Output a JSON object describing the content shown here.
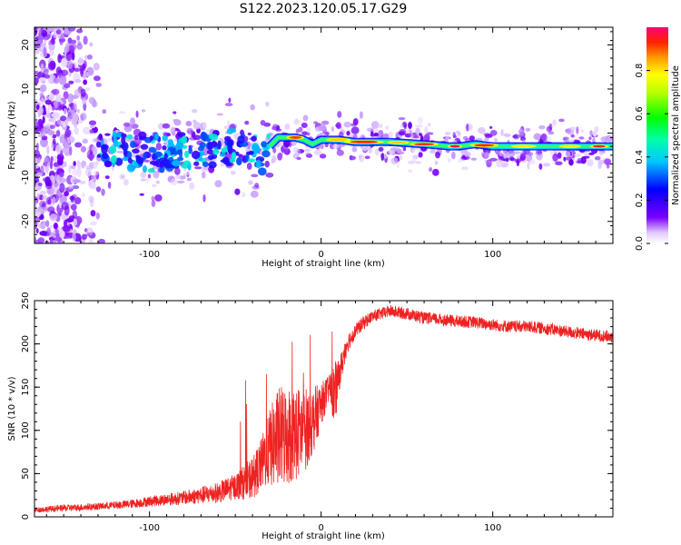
{
  "title": "S122.2023.120.05.17.G29",
  "chart_data": [
    {
      "type": "heatmap",
      "xlabel": "Height of straight line (km)",
      "ylabel": "Frequency (Hz)",
      "xlim": [
        -167,
        170
      ],
      "ylim": [
        -25,
        24
      ],
      "xticks": [
        -100,
        0,
        100
      ],
      "yticks": [
        -20,
        -10,
        0,
        10,
        20
      ],
      "colorbar": {
        "label": "Normalized spectral amplitude",
        "range": [
          0,
          1
        ],
        "ticks": [
          "0.0",
          "0.2",
          "0.4",
          "0.6",
          "0.8"
        ],
        "colormap": "rainbow (purple to red)"
      },
      "ridge": {
        "x": [
          -130,
          -110,
          -90,
          -70,
          -50,
          -35,
          -30,
          -25,
          -20,
          -15,
          -10,
          -5,
          0,
          10,
          20,
          40,
          60,
          75,
          80,
          90,
          100,
          120,
          140,
          160,
          170
        ],
        "frequency_hz": [
          -4,
          -4.5,
          -4.5,
          -3.5,
          -3,
          -5,
          -3,
          -1,
          -1,
          -1,
          -1.5,
          -2.5,
          -1.5,
          -1.5,
          -2,
          -2,
          -2.5,
          -3,
          -3,
          -2.5,
          -3,
          -3,
          -3,
          -3,
          -3
        ]
      },
      "noisy_region_x": [
        -167,
        -130
      ]
    },
    {
      "type": "line",
      "color": "#ee2222",
      "xlabel": "Height of straight line (km)",
      "ylabel": "SNR (10 * v/v)",
      "xlim": [
        -167,
        170
      ],
      "ylim": [
        0,
        250
      ],
      "xticks": [
        -100,
        0,
        100
      ],
      "yticks": [
        0,
        50,
        100,
        150,
        200,
        250
      ],
      "series": [
        {
          "x": [
            -167,
            -150,
            -130,
            -110,
            -100,
            -90,
            -80,
            -70,
            -60,
            -50,
            -40,
            -35,
            -30,
            -25,
            -20,
            -15,
            -10,
            -5,
            0,
            5,
            8,
            10,
            15,
            20,
            25,
            30,
            40,
            50,
            60,
            70,
            80,
            90,
            100,
            110,
            120,
            130,
            140,
            150,
            160,
            170
          ],
          "y": [
            8,
            10,
            12,
            15,
            18,
            20,
            22,
            25,
            28,
            35,
            45,
            60,
            80,
            90,
            95,
            95,
            100,
            110,
            130,
            150,
            140,
            160,
            200,
            215,
            225,
            232,
            238,
            235,
            230,
            228,
            226,
            225,
            222,
            220,
            220,
            218,
            215,
            212,
            210,
            208
          ],
          "noise_amplitude": [
            3,
            4,
            4,
            5,
            6,
            7,
            8,
            10,
            12,
            15,
            25,
            30,
            45,
            60,
            60,
            55,
            50,
            40,
            25,
            15,
            40,
            20,
            12,
            8,
            8,
            7,
            7,
            7,
            7,
            7,
            7,
            7,
            7,
            7,
            7,
            7,
            7,
            7,
            7,
            7
          ]
        }
      ]
    }
  ]
}
